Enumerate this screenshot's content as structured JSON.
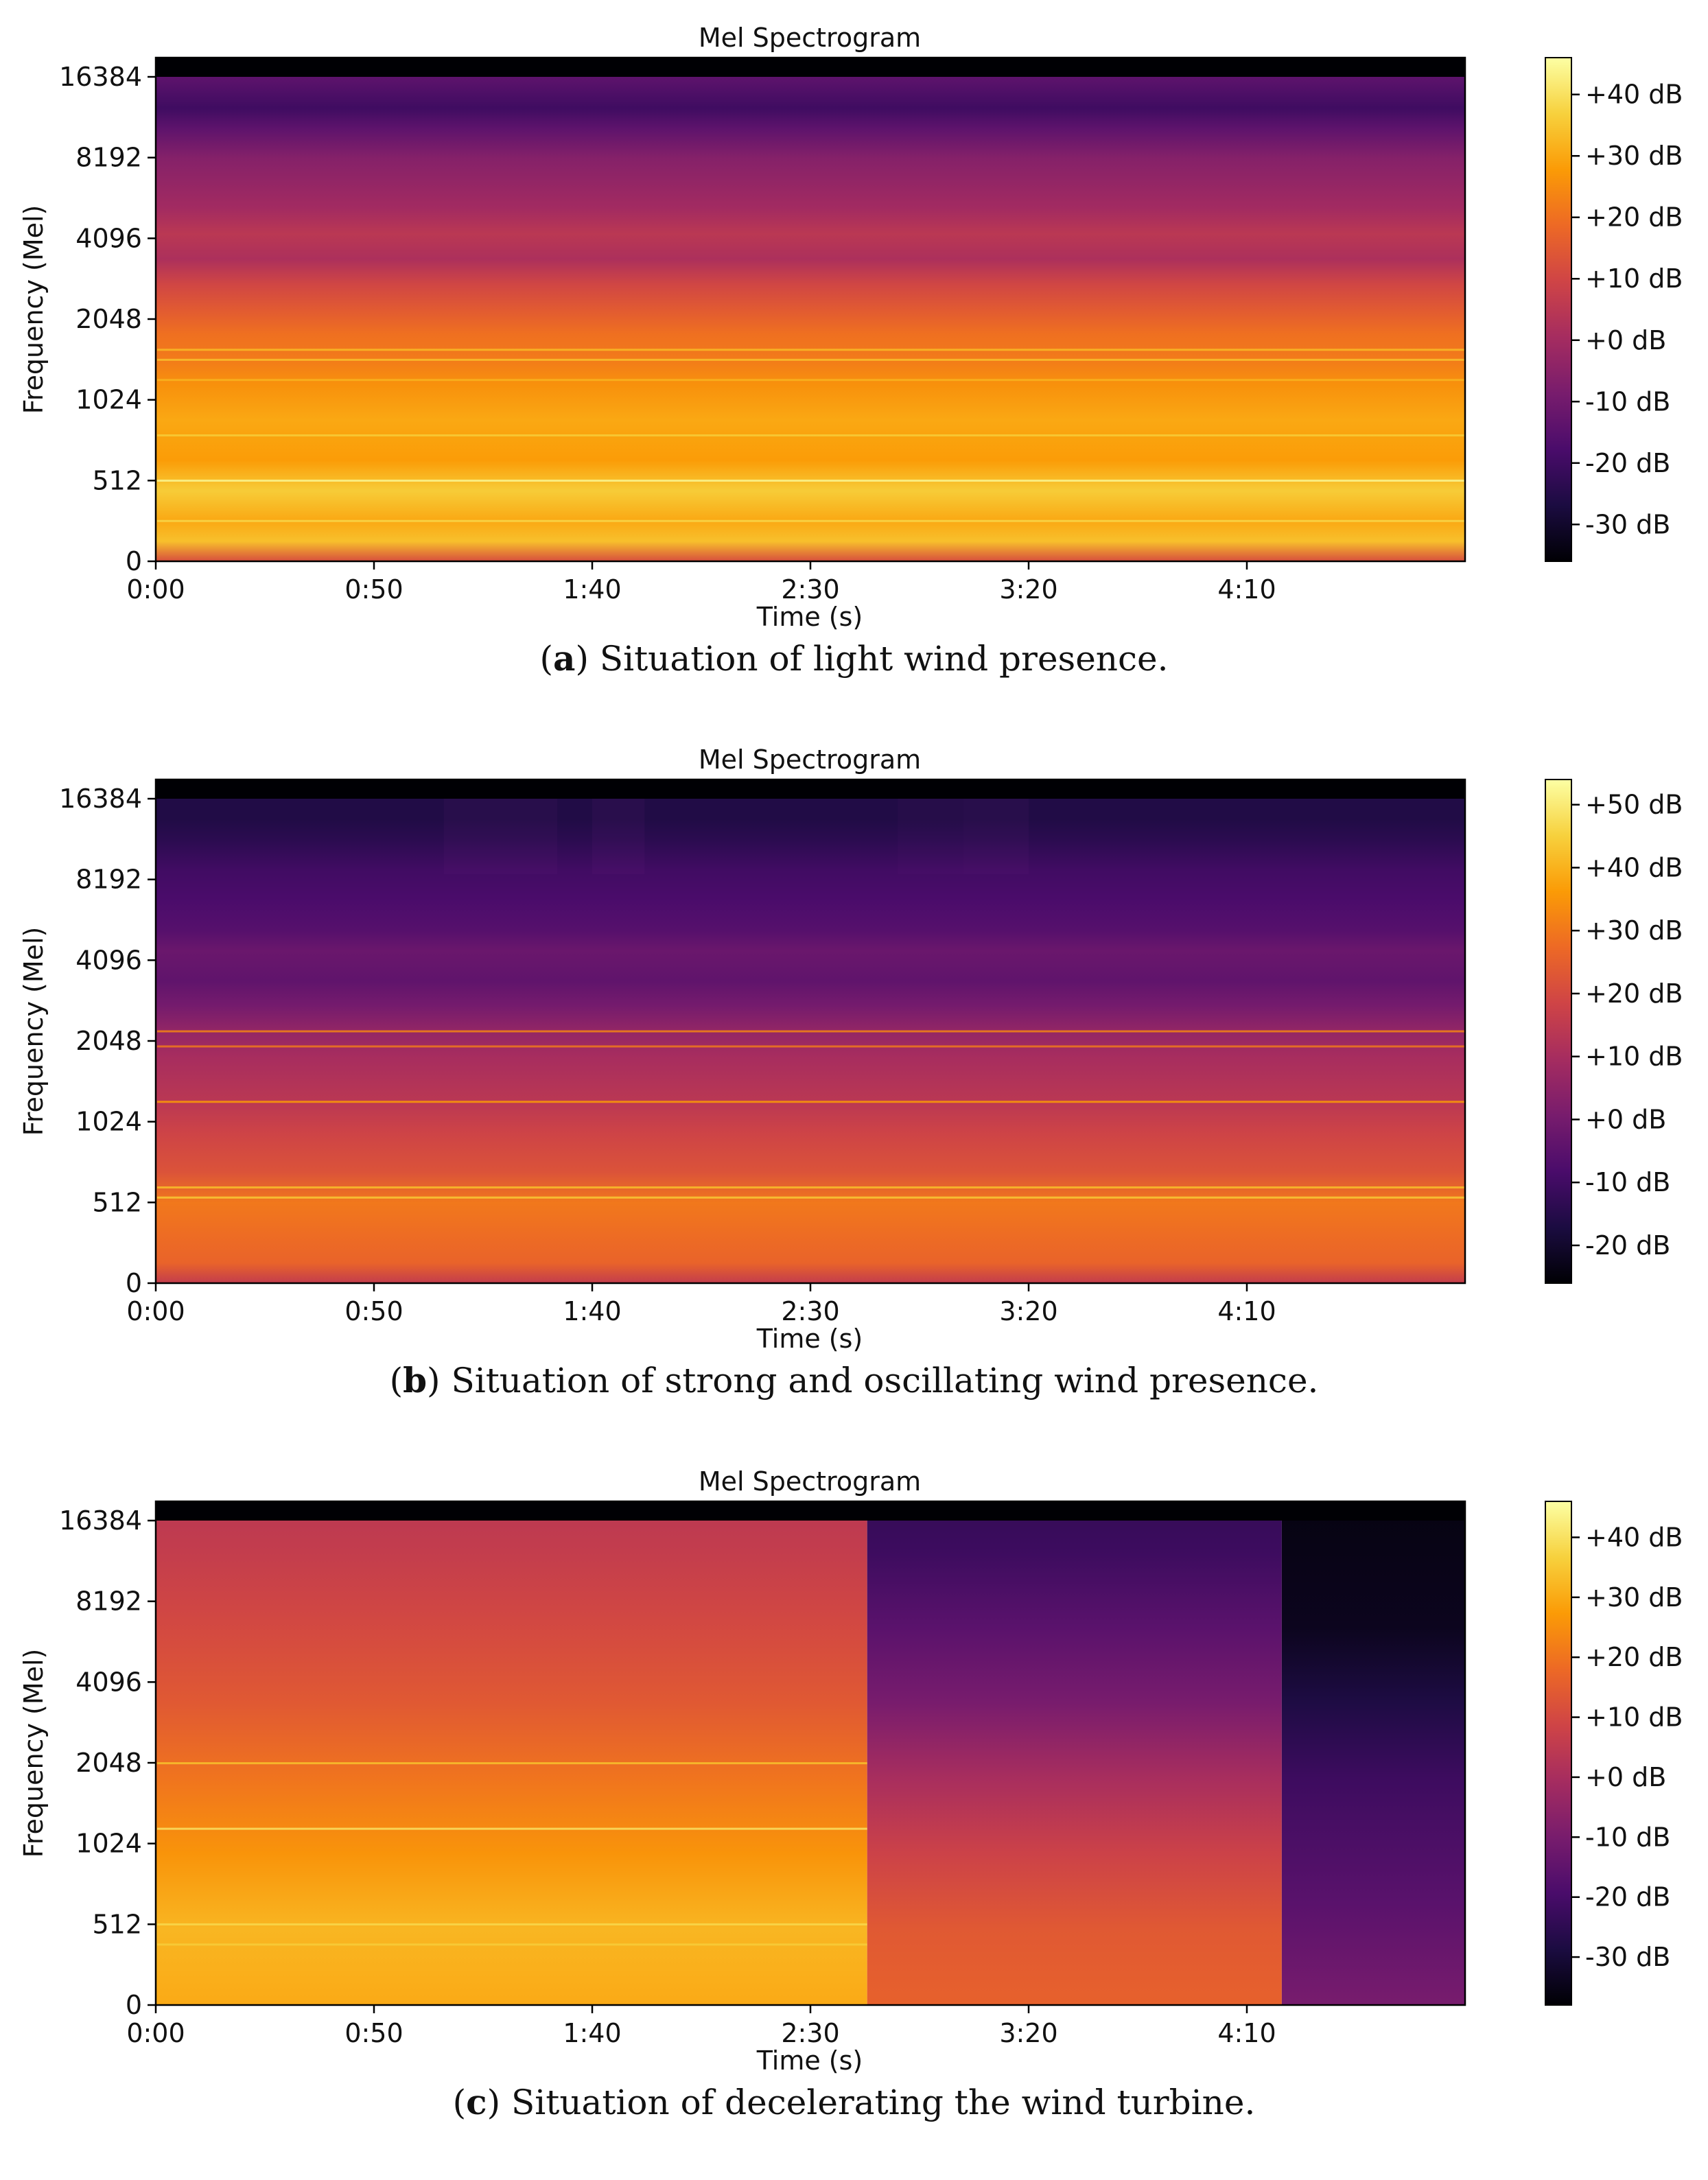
{
  "chart_data": [
    {
      "type": "heatmap",
      "title": "Mel Spectrogram",
      "xlabel": "Time (s)",
      "ylabel": "Frequency (Mel)",
      "x_ticks": [
        "0:00",
        "0:50",
        "1:40",
        "2:30",
        "3:20",
        "4:10"
      ],
      "x_tick_seconds": [
        0,
        50,
        100,
        150,
        200,
        250
      ],
      "xlim_seconds": [
        0,
        300
      ],
      "y_ticks": [
        "0",
        "512",
        "1024",
        "2048",
        "4096",
        "8192",
        "16384"
      ],
      "colorbar_ticks": [
        "+40 dB",
        "+30 dB",
        "+20 dB",
        "+10 dB",
        "+0 dB",
        "-10 dB",
        "-20 dB",
        "-30 dB"
      ],
      "colorbar_values": [
        40,
        30,
        20,
        10,
        0,
        -10,
        -20,
        -30
      ],
      "colorbar_range": [
        -36,
        46
      ],
      "colormap": "inferno",
      "caption_letter": "a",
      "caption_text": " Situation of light wind presence.",
      "bands_db": [
        [
          0.0,
          12
        ],
        [
          0.04,
          34
        ],
        [
          0.08,
          30
        ],
        [
          0.14,
          36
        ],
        [
          0.2,
          28
        ],
        [
          0.28,
          30
        ],
        [
          0.35,
          26
        ],
        [
          0.4,
          22
        ],
        [
          0.45,
          20
        ],
        [
          0.5,
          15
        ],
        [
          0.55,
          10
        ],
        [
          0.6,
          2
        ],
        [
          0.65,
          5
        ],
        [
          0.7,
          0
        ],
        [
          0.75,
          -3
        ],
        [
          0.8,
          -6
        ],
        [
          0.86,
          -14
        ],
        [
          0.9,
          -20
        ],
        [
          0.96,
          -14
        ],
        [
          1.0,
          -14
        ]
      ],
      "lines_db": [
        [
          0.16,
          44
        ],
        [
          0.08,
          38
        ],
        [
          0.25,
          36
        ],
        [
          0.4,
          34
        ],
        [
          0.42,
          33
        ],
        [
          0.36,
          32
        ]
      ]
    },
    {
      "type": "heatmap",
      "title": "Mel Spectrogram",
      "xlabel": "Time (s)",
      "ylabel": "Frequency (Mel)",
      "x_ticks": [
        "0:00",
        "0:50",
        "1:40",
        "2:30",
        "3:20",
        "4:10"
      ],
      "x_tick_seconds": [
        0,
        50,
        100,
        150,
        200,
        250
      ],
      "xlim_seconds": [
        0,
        300
      ],
      "y_ticks": [
        "0",
        "512",
        "1024",
        "2048",
        "4096",
        "8192",
        "16384"
      ],
      "colorbar_ticks": [
        "+50 dB",
        "+40 dB",
        "+30 dB",
        "+20 dB",
        "+10 dB",
        "+0 dB",
        "-10 dB",
        "-20 dB"
      ],
      "colorbar_values": [
        50,
        40,
        30,
        20,
        10,
        0,
        -10,
        -20
      ],
      "colorbar_range": [
        -26,
        54
      ],
      "colormap": "inferno",
      "caption_letter": "b",
      "caption_text": " Situation of strong and oscillating wind presence.",
      "bands_db": [
        [
          0.0,
          16
        ],
        [
          0.04,
          26
        ],
        [
          0.1,
          28
        ],
        [
          0.16,
          30
        ],
        [
          0.22,
          22
        ],
        [
          0.3,
          18
        ],
        [
          0.36,
          14
        ],
        [
          0.45,
          10
        ],
        [
          0.5,
          6
        ],
        [
          0.55,
          0
        ],
        [
          0.6,
          -4
        ],
        [
          0.66,
          -2
        ],
        [
          0.7,
          -6
        ],
        [
          0.76,
          -8
        ],
        [
          0.82,
          -10
        ],
        [
          0.88,
          -14
        ],
        [
          0.92,
          -16
        ],
        [
          1.0,
          -16
        ]
      ],
      "lines_db": [
        [
          0.17,
          44
        ],
        [
          0.19,
          42
        ],
        [
          0.36,
          36
        ],
        [
          0.5,
          32
        ],
        [
          0.47,
          30
        ]
      ]
    },
    {
      "type": "heatmap",
      "title": "Mel Spectrogram",
      "xlabel": "Time (s)",
      "ylabel": "Frequency (Mel)",
      "x_ticks": [
        "0:00",
        "0:50",
        "1:40",
        "2:30",
        "3:20",
        "4:10"
      ],
      "x_tick_seconds": [
        0,
        50,
        100,
        150,
        200,
        250
      ],
      "xlim_seconds": [
        0,
        300
      ],
      "y_ticks": [
        "0",
        "512",
        "1024",
        "2048",
        "4096",
        "8192",
        "16384"
      ],
      "colorbar_ticks": [
        "+40 dB",
        "+30 dB",
        "+20 dB",
        "+10 dB",
        "+0 dB",
        "-10 dB",
        "-20 dB",
        "-30 dB"
      ],
      "colorbar_values": [
        40,
        30,
        20,
        10,
        0,
        -10,
        -20,
        -30
      ],
      "colorbar_range": [
        -38,
        46
      ],
      "colormap": "inferno",
      "caption_letter": "c",
      "caption_text": " Situation of decelerating the wind turbine.",
      "segments_seconds": [
        0,
        163,
        258,
        300
      ],
      "segments_db": [
        [
          [
            0.0,
            30
          ],
          [
            0.15,
            32
          ],
          [
            0.3,
            26
          ],
          [
            0.45,
            20
          ],
          [
            0.6,
            14
          ],
          [
            0.75,
            10
          ],
          [
            0.9,
            6
          ],
          [
            1.0,
            4
          ]
        ],
        [
          [
            0.0,
            16
          ],
          [
            0.15,
            14
          ],
          [
            0.3,
            8
          ],
          [
            0.45,
            0
          ],
          [
            0.6,
            -10
          ],
          [
            0.75,
            -16
          ],
          [
            0.9,
            -22
          ],
          [
            1.0,
            -24
          ]
        ],
        [
          [
            0.0,
            -10
          ],
          [
            0.2,
            -16
          ],
          [
            0.45,
            -22
          ],
          [
            0.6,
            -28
          ],
          [
            0.75,
            -34
          ],
          [
            1.0,
            -36
          ]
        ]
      ],
      "lines_db": [
        [
          0.35,
          40
        ],
        [
          0.16,
          38
        ],
        [
          0.48,
          34
        ],
        [
          0.12,
          36
        ]
      ]
    }
  ]
}
